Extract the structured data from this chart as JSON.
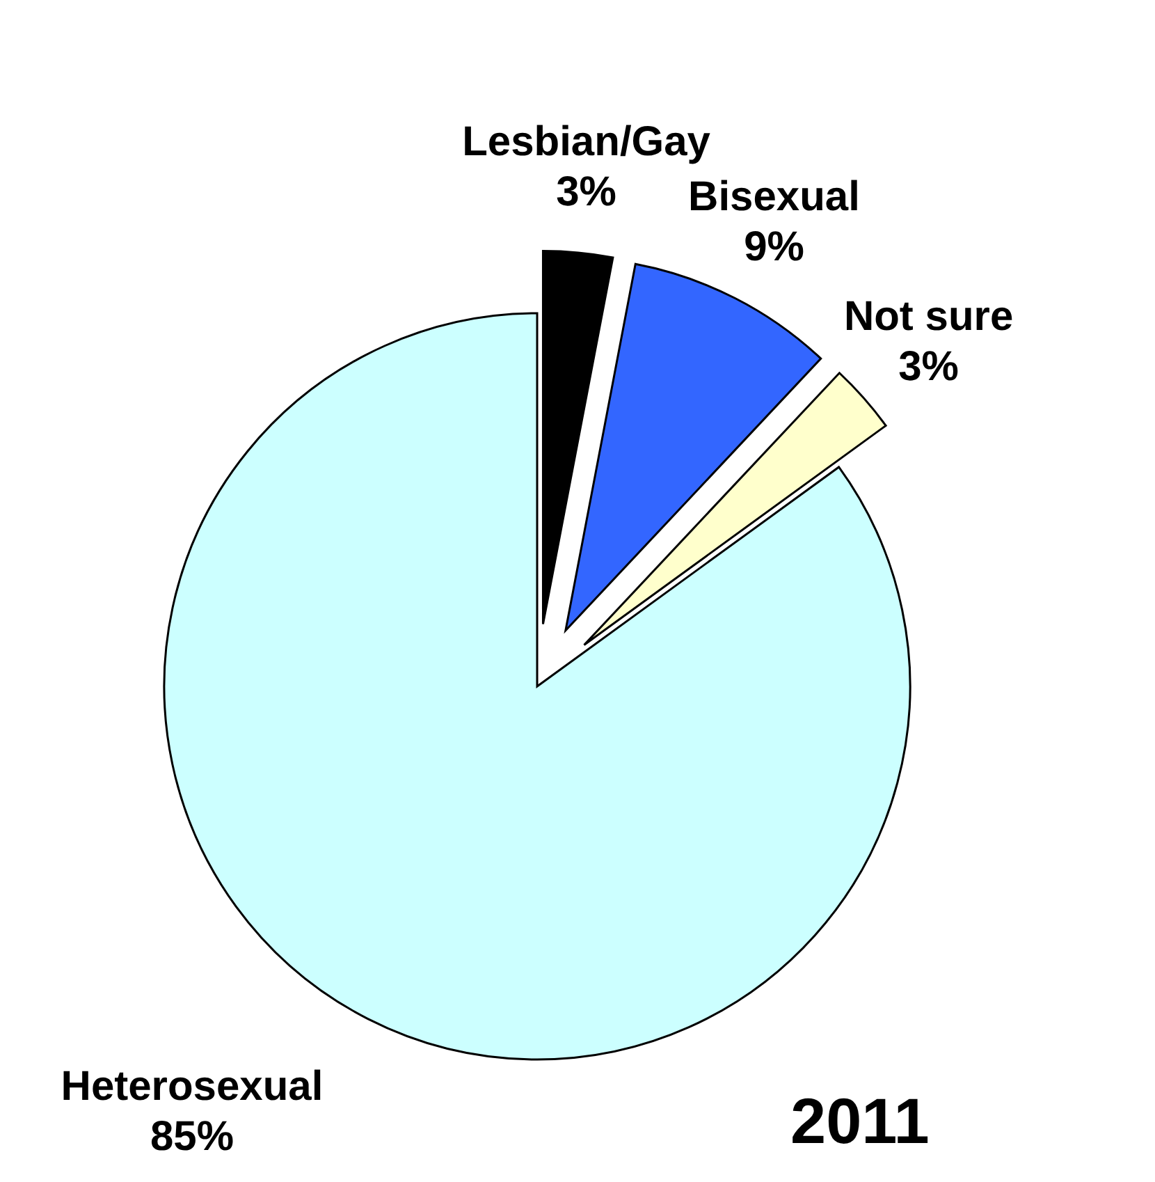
{
  "chart_data": {
    "type": "pie",
    "title": "2011",
    "categories": [
      "Lesbian/Gay",
      "Bisexual",
      "Not sure",
      "Heterosexual"
    ],
    "values": [
      3,
      9,
      3,
      85
    ],
    "colors": [
      "#000000",
      "#3366ff",
      "#ffffcc",
      "#ccffff"
    ],
    "value_labels": [
      "3%",
      "9%",
      "3%",
      "85%"
    ]
  }
}
